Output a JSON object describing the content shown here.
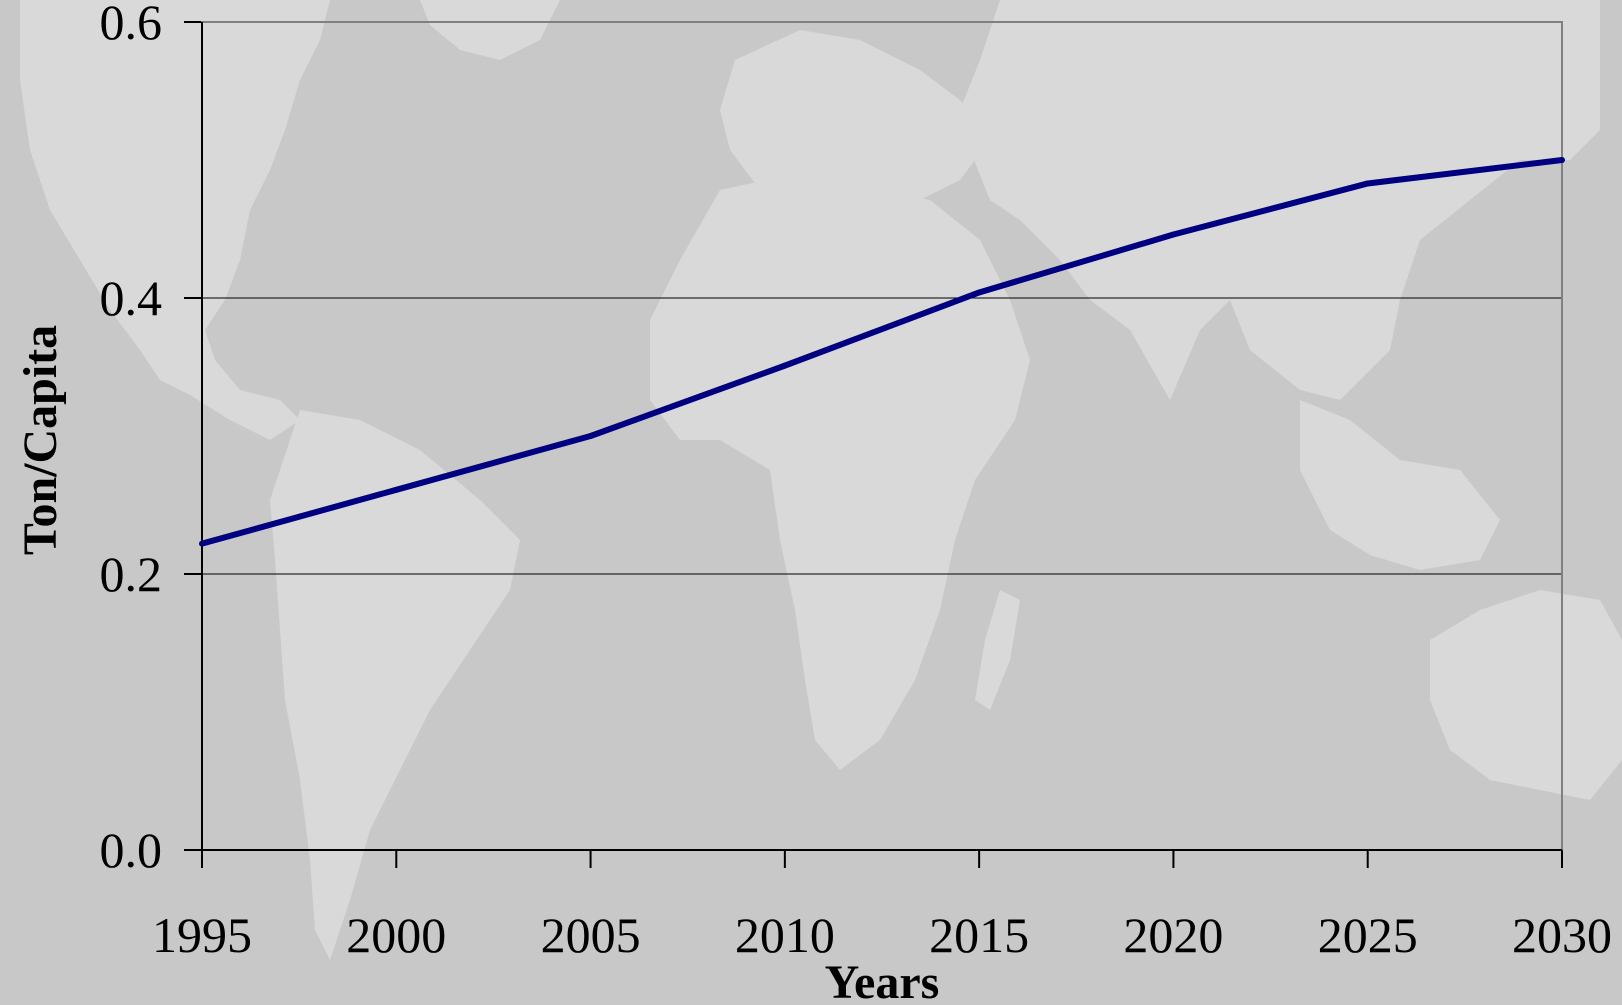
{
  "chart_data": {
    "type": "line",
    "title": "",
    "xlabel": "Years",
    "ylabel": "Ton/Capita",
    "x": [
      1995,
      2000,
      2005,
      2010,
      2015,
      2020,
      2025,
      2030
    ],
    "xticks": [
      "1995",
      "2000",
      "2005",
      "2010",
      "2015",
      "2020",
      "2025",
      "2030"
    ],
    "yticks": [
      "0.0",
      "0.2",
      "0.4",
      "0.6"
    ],
    "ylim": [
      0,
      0.6
    ],
    "xlim": [
      1995,
      2030
    ],
    "grid": "horizontal",
    "legend": "none",
    "series": [
      {
        "values": [
          0.222,
          0.261,
          0.3,
          0.351,
          0.404,
          0.446,
          0.483,
          0.5
        ]
      }
    ]
  },
  "colors": {
    "background": "#c8c8c8",
    "land": "#d9d9d9",
    "line": "#000080",
    "axis": "#000000",
    "grid": "#000000"
  },
  "background_image": "world-map"
}
